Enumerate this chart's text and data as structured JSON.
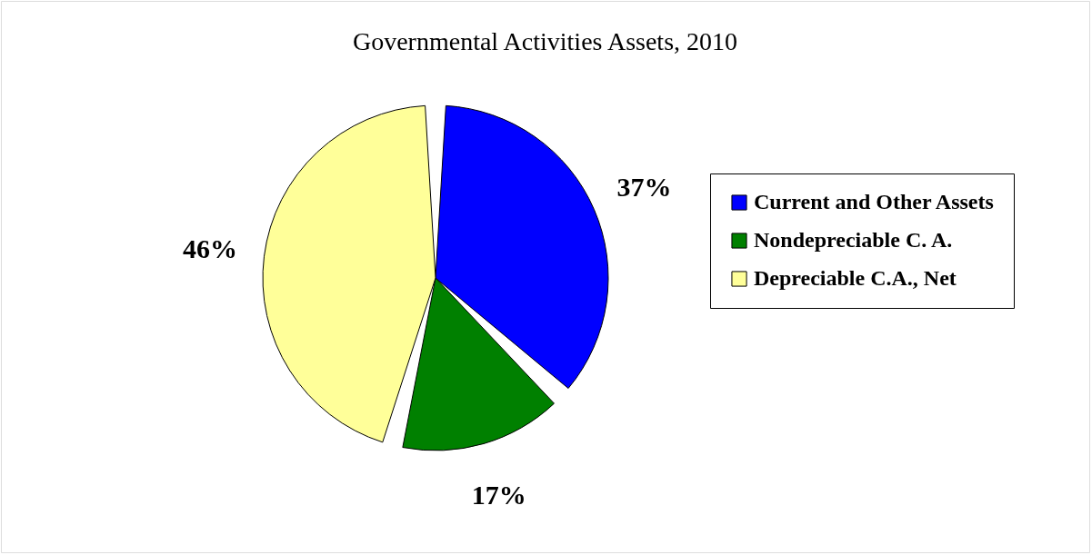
{
  "chart_data": {
    "type": "pie",
    "title": "Governmental Activities Assets, 2010",
    "categories": [
      "Current and Other Assets",
      "Nondepreciable C. A.",
      "Depreciable C.A., Net"
    ],
    "values": [
      37,
      17,
      46
    ],
    "colors": [
      "#0000ff",
      "#008000",
      "#ffff99"
    ],
    "value_labels": [
      "37%",
      "17%",
      "46%"
    ],
    "legend": "right"
  }
}
